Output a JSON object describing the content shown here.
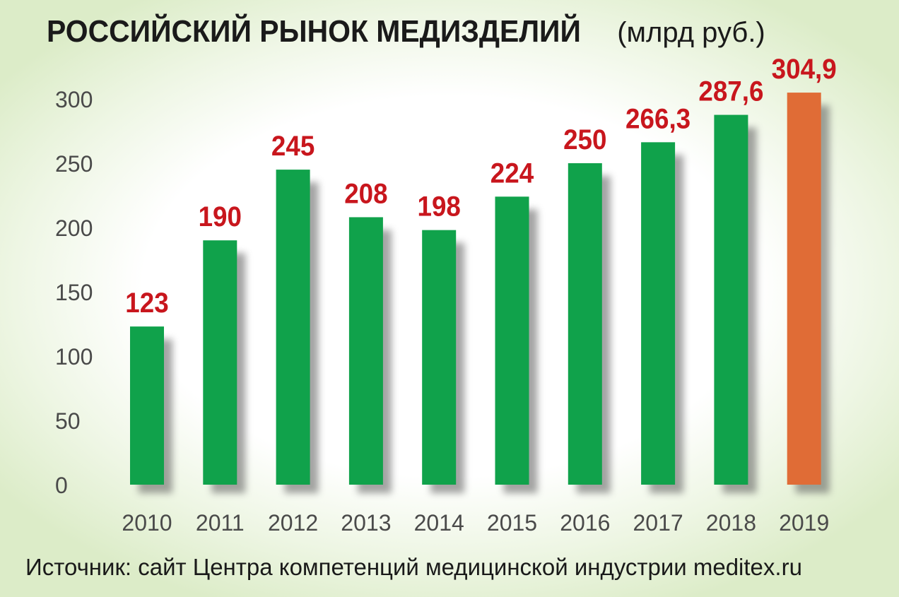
{
  "title": {
    "main": "РОССИЙСКИЙ РЫНОК МЕДИЗДЕЛИЙ",
    "unit": "(млрд руб.)"
  },
  "source": "Источник: сайт Центра компетенций медицинской индустрии meditex.ru",
  "colors": {
    "bar": "#10a24b",
    "highlight_bar": "#e06c36",
    "value_label": "#c8161d",
    "axis_text": "#4a4a4a"
  },
  "chart_data": {
    "type": "bar",
    "categories": [
      "2010",
      "2011",
      "2012",
      "2013",
      "2014",
      "2015",
      "2016",
      "2017",
      "2018",
      "2019"
    ],
    "values": [
      123,
      190,
      245,
      208,
      198,
      224,
      250,
      266.3,
      287.6,
      304.9
    ],
    "value_labels": [
      "123",
      "190",
      "245",
      "208",
      "198",
      "224",
      "250",
      "266,3",
      "287,6",
      "304,9"
    ],
    "highlight_index": 9,
    "yticks": [
      "0",
      "50",
      "100",
      "150",
      "200",
      "250",
      "300"
    ],
    "ylim": [
      0,
      300
    ],
    "grid": false,
    "legend": "none"
  }
}
